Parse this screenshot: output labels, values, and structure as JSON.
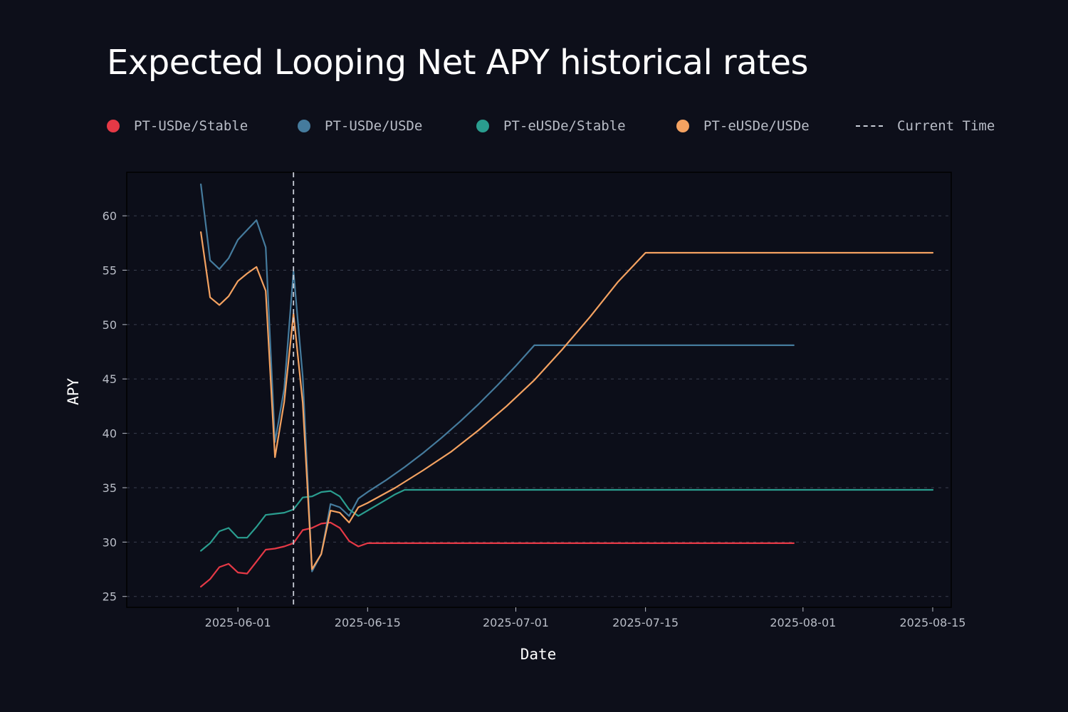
{
  "chart_data": {
    "type": "line",
    "title": "Expected Looping Net APY historical rates",
    "xlabel": "Date",
    "ylabel": "APY",
    "x_date_range": [
      "2025-05-20",
      "2025-08-17"
    ],
    "ylim": [
      24,
      64
    ],
    "yticks": [
      25,
      30,
      35,
      40,
      45,
      50,
      55,
      60
    ],
    "xticks": [
      {
        "date": "2025-06-01",
        "label": "2025-06-01"
      },
      {
        "date": "2025-06-15",
        "label": "2025-06-15"
      },
      {
        "date": "2025-07-01",
        "label": "2025-07-01"
      },
      {
        "date": "2025-07-15",
        "label": "2025-07-15"
      },
      {
        "date": "2025-08-01",
        "label": "2025-08-01"
      },
      {
        "date": "2025-08-15",
        "label": "2025-08-15"
      }
    ],
    "grid": "horizontal-dashed",
    "current_time": {
      "label": "Current Time",
      "date": "2025-06-07"
    },
    "legend": [
      {
        "key": "pt-usde-stable",
        "label": "PT-USDe/Stable",
        "color": "#e63946",
        "style": "dot"
      },
      {
        "key": "pt-usde-usde",
        "label": "PT-USDe/USDe",
        "color": "#457b9d",
        "style": "dot"
      },
      {
        "key": "pt-eusde-stable",
        "label": "PT-eUSDe/Stable",
        "color": "#2a9d8f",
        "style": "dot"
      },
      {
        "key": "pt-eusde-usde",
        "label": "PT-eUSDe/USDe",
        "color": "#f4a261",
        "style": "dot"
      },
      {
        "key": "current-time",
        "label": "Current Time",
        "color": "#c8ccd6",
        "style": "dash"
      }
    ],
    "series": [
      {
        "name": "PT-USDe/Stable",
        "color": "#e63946",
        "points": [
          [
            "2025-05-28",
            25.9
          ],
          [
            "2025-05-29",
            26.6
          ],
          [
            "2025-05-30",
            27.7
          ],
          [
            "2025-05-31",
            28.0
          ],
          [
            "2025-06-01",
            27.2
          ],
          [
            "2025-06-02",
            27.1
          ],
          [
            "2025-06-03",
            28.2
          ],
          [
            "2025-06-04",
            29.3
          ],
          [
            "2025-06-05",
            29.4
          ],
          [
            "2025-06-06",
            29.6
          ],
          [
            "2025-06-07",
            29.9
          ],
          [
            "2025-06-08",
            31.1
          ],
          [
            "2025-06-09",
            31.3
          ],
          [
            "2025-06-10",
            31.7
          ],
          [
            "2025-06-11",
            31.8
          ],
          [
            "2025-06-12",
            31.3
          ],
          [
            "2025-06-13",
            30.1
          ],
          [
            "2025-06-14",
            29.6
          ],
          [
            "2025-06-15",
            29.9
          ],
          [
            "2025-06-16",
            29.9
          ],
          [
            "2025-07-31",
            29.9
          ]
        ]
      },
      {
        "name": "PT-USDe/USDe",
        "color": "#457b9d",
        "points": [
          [
            "2025-05-28",
            62.9
          ],
          [
            "2025-05-29",
            55.9
          ],
          [
            "2025-05-30",
            55.1
          ],
          [
            "2025-05-31",
            56.1
          ],
          [
            "2025-06-01",
            57.8
          ],
          [
            "2025-06-02",
            58.7
          ],
          [
            "2025-06-03",
            59.6
          ],
          [
            "2025-06-04",
            57.1
          ],
          [
            "2025-06-05",
            39.2
          ],
          [
            "2025-06-06",
            44.1
          ],
          [
            "2025-06-07",
            54.9
          ],
          [
            "2025-06-08",
            45.2
          ],
          [
            "2025-06-09",
            27.3
          ],
          [
            "2025-06-10",
            28.9
          ],
          [
            "2025-06-11",
            33.5
          ],
          [
            "2025-06-12",
            33.2
          ],
          [
            "2025-06-13",
            32.4
          ],
          [
            "2025-06-14",
            34.0
          ],
          [
            "2025-06-15",
            34.6
          ],
          [
            "2025-06-17",
            35.7
          ],
          [
            "2025-06-19",
            36.9
          ],
          [
            "2025-06-21",
            38.2
          ],
          [
            "2025-06-23",
            39.6
          ],
          [
            "2025-06-25",
            41.1
          ],
          [
            "2025-06-27",
            42.7
          ],
          [
            "2025-06-29",
            44.4
          ],
          [
            "2025-07-01",
            46.2
          ],
          [
            "2025-07-03",
            48.1
          ],
          [
            "2025-07-31",
            48.1
          ]
        ]
      },
      {
        "name": "PT-eUSDe/Stable",
        "color": "#2a9d8f",
        "points": [
          [
            "2025-05-28",
            29.2
          ],
          [
            "2025-05-29",
            29.9
          ],
          [
            "2025-05-30",
            31.0
          ],
          [
            "2025-05-31",
            31.3
          ],
          [
            "2025-06-01",
            30.4
          ],
          [
            "2025-06-02",
            30.4
          ],
          [
            "2025-06-03",
            31.4
          ],
          [
            "2025-06-04",
            32.5
          ],
          [
            "2025-06-05",
            32.6
          ],
          [
            "2025-06-06",
            32.7
          ],
          [
            "2025-06-07",
            33.0
          ],
          [
            "2025-06-08",
            34.1
          ],
          [
            "2025-06-09",
            34.2
          ],
          [
            "2025-06-10",
            34.6
          ],
          [
            "2025-06-11",
            34.7
          ],
          [
            "2025-06-12",
            34.2
          ],
          [
            "2025-06-13",
            33.0
          ],
          [
            "2025-06-14",
            32.4
          ],
          [
            "2025-06-15",
            32.9
          ],
          [
            "2025-06-16",
            33.4
          ],
          [
            "2025-06-17",
            33.9
          ],
          [
            "2025-06-18",
            34.4
          ],
          [
            "2025-06-19",
            34.8
          ],
          [
            "2025-08-15",
            34.8
          ]
        ]
      },
      {
        "name": "PT-eUSDe/USDe",
        "color": "#f4a261",
        "points": [
          [
            "2025-05-28",
            58.5
          ],
          [
            "2025-05-29",
            52.5
          ],
          [
            "2025-05-30",
            51.8
          ],
          [
            "2025-05-31",
            52.6
          ],
          [
            "2025-06-01",
            54.0
          ],
          [
            "2025-06-02",
            54.7
          ],
          [
            "2025-06-03",
            55.3
          ],
          [
            "2025-06-04",
            53.1
          ],
          [
            "2025-06-05",
            37.8
          ],
          [
            "2025-06-06",
            42.9
          ],
          [
            "2025-06-07",
            51.0
          ],
          [
            "2025-06-08",
            42.8
          ],
          [
            "2025-06-09",
            27.5
          ],
          [
            "2025-06-10",
            28.9
          ],
          [
            "2025-06-11",
            32.9
          ],
          [
            "2025-06-12",
            32.7
          ],
          [
            "2025-06-13",
            31.8
          ],
          [
            "2025-06-14",
            33.2
          ],
          [
            "2025-06-15",
            33.6
          ],
          [
            "2025-06-18",
            35.0
          ],
          [
            "2025-06-21",
            36.6
          ],
          [
            "2025-06-24",
            38.3
          ],
          [
            "2025-06-27",
            40.3
          ],
          [
            "2025-06-30",
            42.5
          ],
          [
            "2025-07-03",
            44.9
          ],
          [
            "2025-07-06",
            47.7
          ],
          [
            "2025-07-09",
            50.7
          ],
          [
            "2025-07-12",
            53.9
          ],
          [
            "2025-07-15",
            56.6
          ],
          [
            "2025-08-15",
            56.6
          ]
        ]
      }
    ]
  }
}
